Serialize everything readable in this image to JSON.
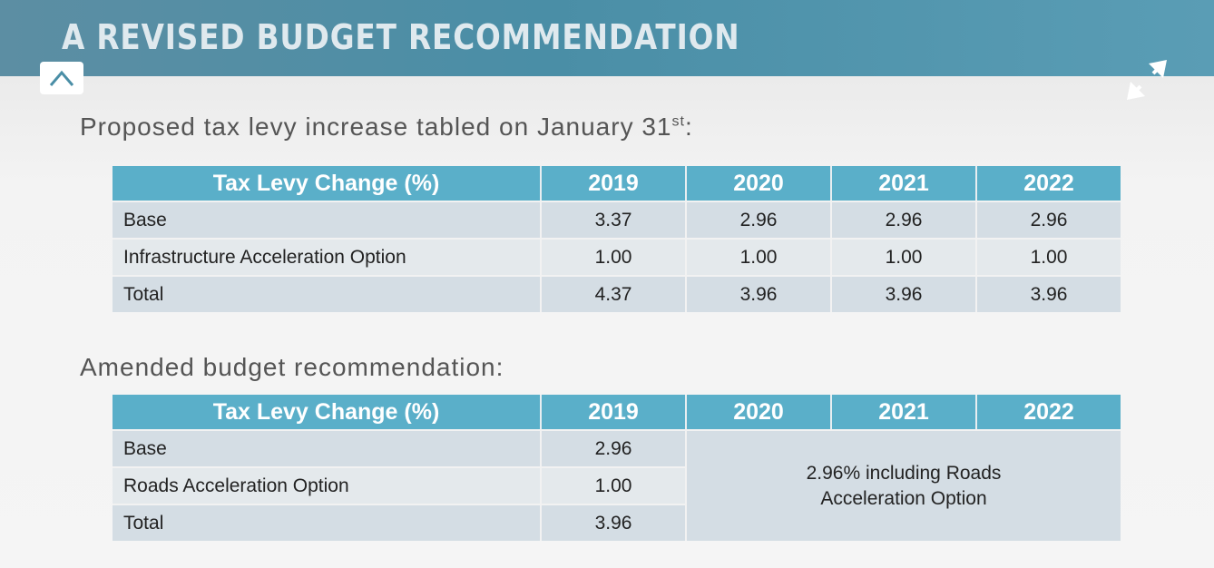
{
  "header": {
    "title": "A REVISED BUDGET RECOMMENDATION",
    "up_icon": "up-chevron-icon",
    "expand_icon": "expand-arrows-icon",
    "colors": {
      "banner": "#4a8ea6",
      "table_header": "#5aafc9"
    }
  },
  "section1": {
    "heading": "Proposed tax levy increase tabled on January 31",
    "heading_sup": "st",
    "heading_suffix": ":",
    "table": {
      "headers": [
        "Tax Levy Change (%)",
        "2019",
        "2020",
        "2021",
        "2022"
      ],
      "rows": [
        [
          "Base",
          "3.37",
          "2.96",
          "2.96",
          "2.96"
        ],
        [
          "Infrastructure Acceleration Option",
          "1.00",
          "1.00",
          "1.00",
          "1.00"
        ],
        [
          "Total",
          "4.37",
          "3.96",
          "3.96",
          "3.96"
        ]
      ]
    }
  },
  "section2": {
    "heading": "Amended budget recommendation:",
    "table": {
      "headers": [
        "Tax Levy Change (%)",
        "2019",
        "2020",
        "2021",
        "2022"
      ],
      "rows": [
        [
          "Base",
          "2.96"
        ],
        [
          "Roads Acceleration Option",
          "1.00"
        ],
        [
          "Total",
          "3.96"
        ]
      ],
      "merged_note_line1": "2.96% including Roads",
      "merged_note_line2": "Acceleration Option"
    }
  }
}
